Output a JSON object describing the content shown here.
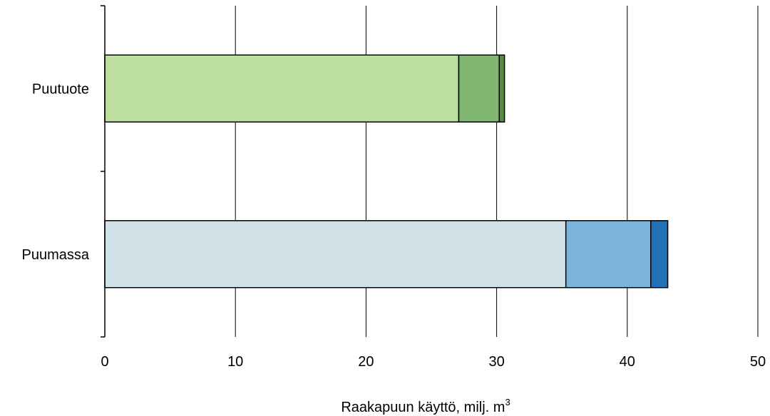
{
  "chart_data": {
    "type": "bar",
    "orientation": "horizontal",
    "stacked": true,
    "categories": [
      "Puutuote",
      "Puumassa"
    ],
    "segments": [
      {
        "values": [
          27.1,
          3.1,
          0.4
        ],
        "colors": [
          "#bddf9f",
          "#80b66f",
          "#548e3c"
        ]
      },
      {
        "values": [
          35.3,
          6.5,
          1.3
        ],
        "colors": [
          "#d0e2e8",
          "#7bb5dd",
          "#2272b5"
        ]
      }
    ],
    "xlim": [
      0,
      50
    ],
    "xticks": [
      "0",
      "10",
      "20",
      "30",
      "40",
      "50"
    ],
    "xlabel": "Raakapuun käyttö, milj. m",
    "xlabel_superscript": "3",
    "grid": "vertical"
  }
}
